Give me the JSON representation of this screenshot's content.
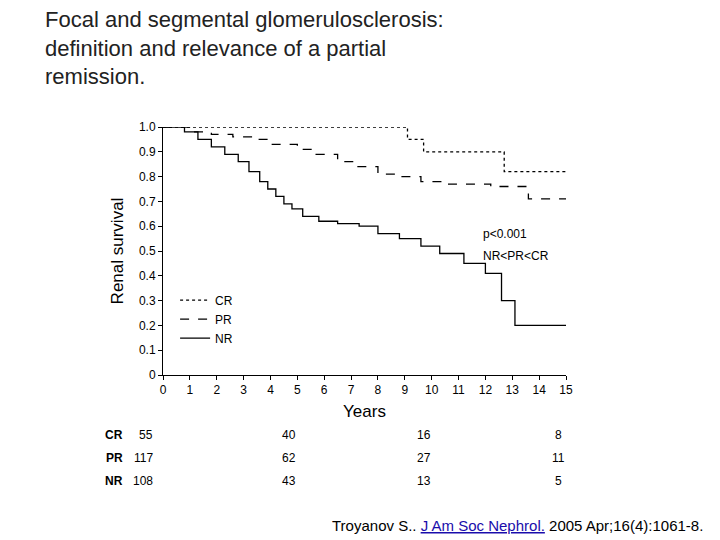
{
  "chart_data": {
    "type": "line",
    "title": [
      "Focal and segmental glomerulosclerosis:",
      "definition and relevance of a partial",
      "remission."
    ],
    "x_label": "Years",
    "y_label": "Renal survival",
    "xlim": [
      0,
      15
    ],
    "xticks": [
      0,
      1,
      2,
      3,
      4,
      5,
      6,
      7,
      8,
      9,
      10,
      11,
      12,
      13,
      14,
      15
    ],
    "ylim": [
      0,
      1
    ],
    "yticks": [
      0,
      0.1,
      0.2,
      0.3,
      0.4,
      0.5,
      0.6,
      0.7,
      0.8,
      0.9,
      {
        "value": 1,
        "label": "1.0"
      }
    ],
    "grid": false,
    "legend": "left",
    "series": [
      {
        "name": "CR",
        "color": "#000000",
        "line_style": "dot",
        "x": [
          0,
          9.1,
          9.7,
          12.7,
          15
        ],
        "values": [
          1,
          0.95,
          0.9,
          0.82,
          0.82
        ]
      },
      {
        "name": "PR",
        "color": "#000000",
        "line_style": "dash",
        "x": [
          0,
          1.0,
          1.8,
          2.6,
          3.4,
          4.0,
          5.0,
          5.7,
          6.5,
          7.2,
          8.0,
          8.8,
          9.6,
          10.5,
          12.2,
          13.6,
          15
        ],
        "values": [
          1,
          0.98,
          0.97,
          0.96,
          0.95,
          0.93,
          0.91,
          0.89,
          0.86,
          0.84,
          0.81,
          0.8,
          0.78,
          0.77,
          0.76,
          0.71,
          0.71
        ]
      },
      {
        "name": "NR",
        "color": "#000000",
        "line_style": "solid",
        "x": [
          0,
          0.8,
          1.3,
          1.8,
          2.3,
          2.8,
          3.2,
          3.6,
          3.9,
          4.2,
          4.5,
          4.8,
          5.2,
          5.8,
          6.5,
          7.3,
          8.0,
          8.8,
          9.6,
          10.3,
          11.2,
          12.0,
          12.6,
          13.1,
          15
        ],
        "values": [
          1,
          0.98,
          0.95,
          0.92,
          0.89,
          0.86,
          0.82,
          0.78,
          0.75,
          0.72,
          0.69,
          0.67,
          0.64,
          0.62,
          0.61,
          0.6,
          0.57,
          0.55,
          0.52,
          0.49,
          0.45,
          0.41,
          0.3,
          0.2,
          0.2
        ]
      }
    ],
    "annotations": [
      "p<0.001",
      "NR<PR<CR"
    ],
    "risk_table": {
      "x": [
        0,
        5,
        10,
        15
      ],
      "rows": [
        {
          "name": "CR",
          "values": [
            55,
            40,
            16,
            8
          ]
        },
        {
          "name": "PR",
          "values": [
            117,
            62,
            27,
            11
          ]
        },
        {
          "name": "NR",
          "values": [
            108,
            43,
            13,
            5
          ]
        }
      ]
    },
    "citation": {
      "author": "Troyanov S..",
      "journal": "J Am Soc Nephrol.",
      "details": "2005 Apr;16(4):1061-8."
    }
  }
}
